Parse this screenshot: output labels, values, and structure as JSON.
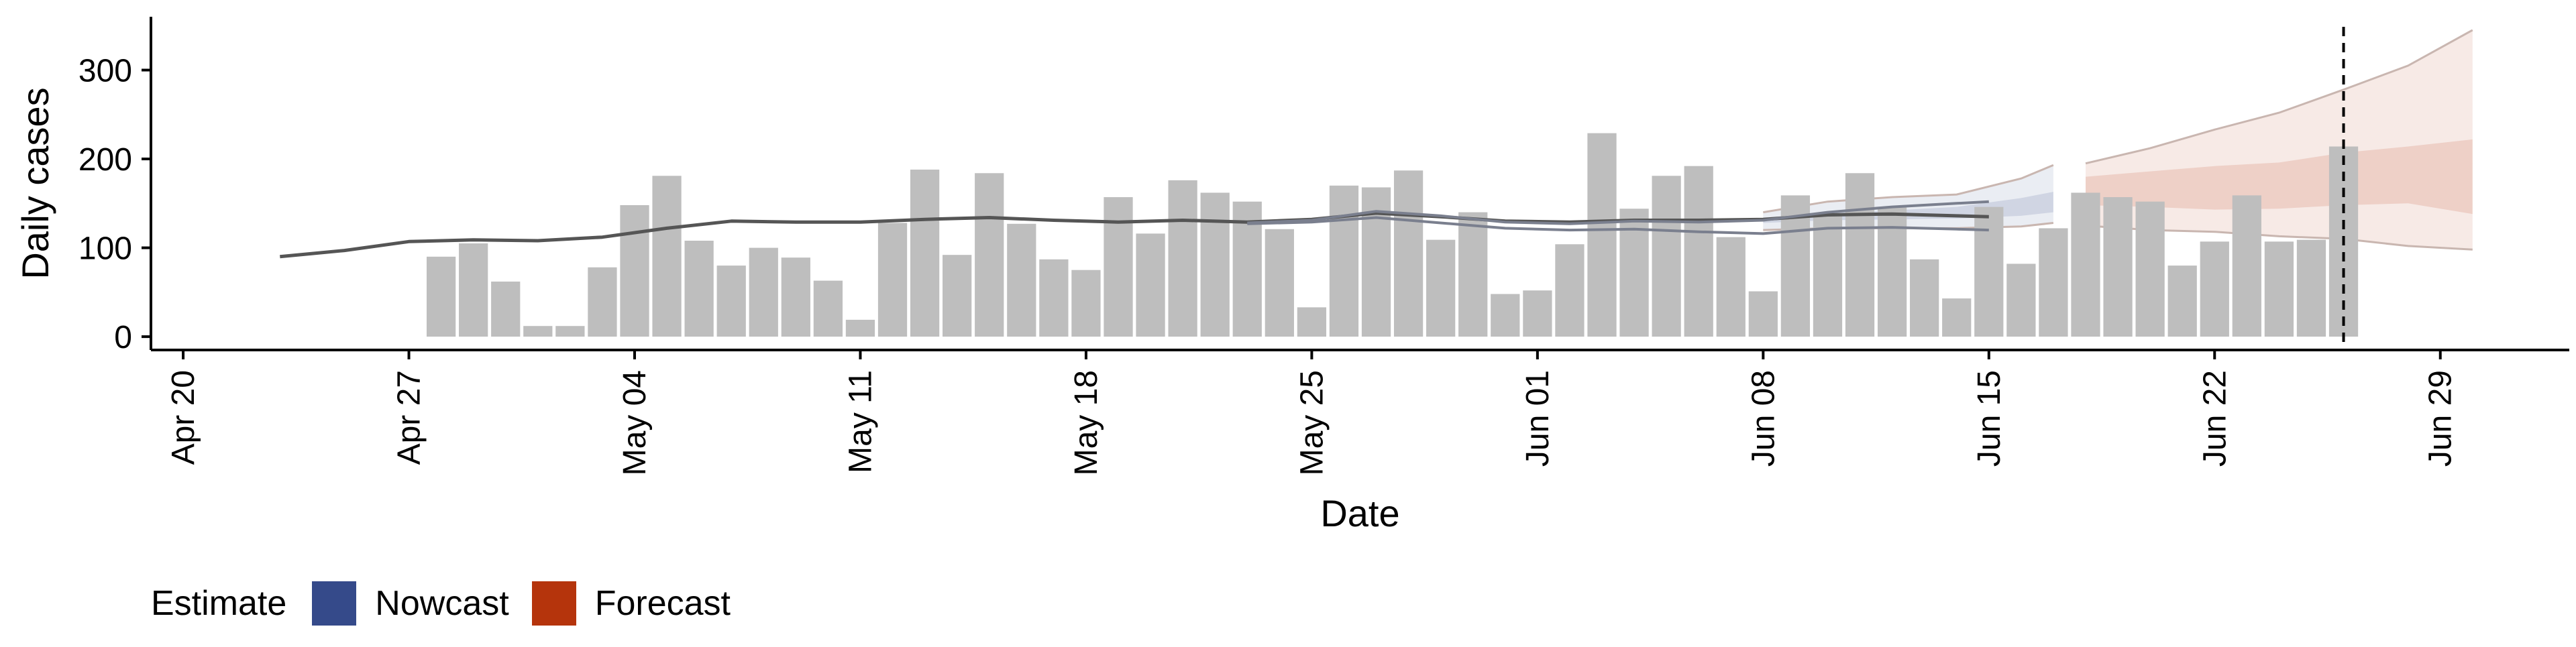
{
  "chart_data": {
    "type": "bar",
    "title": "",
    "xlabel": "Date",
    "ylabel": "Daily cases",
    "ylim": [
      -15,
      360
    ],
    "xlim": [
      "2020-04-19",
      "2020-07-03"
    ],
    "yticks": [
      0,
      100,
      200,
      300
    ],
    "ytick_labels": [
      "0",
      "100",
      "200",
      "300"
    ],
    "xticks": [
      "2020-04-20",
      "2020-04-27",
      "2020-05-04",
      "2020-05-11",
      "2020-05-18",
      "2020-05-25",
      "2020-06-01",
      "2020-06-08",
      "2020-06-15",
      "2020-06-22",
      "2020-06-29"
    ],
    "xtick_labels": [
      "Apr 20",
      "Apr 27",
      "May 04",
      "May 11",
      "May 18",
      "May 25",
      "Jun 01",
      "Jun 08",
      "Jun 15",
      "Jun 22",
      "Jun 29"
    ],
    "legend": {
      "title": "Estimate",
      "position": "bottom-left",
      "items": [
        {
          "label": "Nowcast",
          "color": "#354a8a"
        },
        {
          "label": "Forecast",
          "color": "#b5340c"
        }
      ]
    },
    "vline_date": "2020-06-26",
    "bars": {
      "color": "#bebebe",
      "dates": [
        "2020-04-28",
        "2020-04-29",
        "2020-04-30",
        "2020-05-01",
        "2020-05-02",
        "2020-05-03",
        "2020-05-04",
        "2020-05-05",
        "2020-05-06",
        "2020-05-07",
        "2020-05-08",
        "2020-05-09",
        "2020-05-10",
        "2020-05-11",
        "2020-05-12",
        "2020-05-13",
        "2020-05-14",
        "2020-05-15",
        "2020-05-16",
        "2020-05-17",
        "2020-05-18",
        "2020-05-19",
        "2020-05-20",
        "2020-05-21",
        "2020-05-22",
        "2020-05-23",
        "2020-05-24",
        "2020-05-25",
        "2020-05-26",
        "2020-05-27",
        "2020-05-28",
        "2020-05-29",
        "2020-05-30",
        "2020-05-31",
        "2020-06-01",
        "2020-06-02",
        "2020-06-03",
        "2020-06-04",
        "2020-06-05",
        "2020-06-06",
        "2020-06-07",
        "2020-06-08",
        "2020-06-09",
        "2020-06-10",
        "2020-06-11",
        "2020-06-12",
        "2020-06-13",
        "2020-06-14",
        "2020-06-15",
        "2020-06-16",
        "2020-06-17",
        "2020-06-18",
        "2020-06-19",
        "2020-06-20",
        "2020-06-21",
        "2020-06-22",
        "2020-06-23",
        "2020-06-24",
        "2020-06-25",
        "2020-06-26"
      ],
      "values": [
        90,
        105,
        62,
        12,
        12,
        78,
        148,
        181,
        108,
        80,
        100,
        89,
        63,
        19,
        128,
        188,
        92,
        184,
        127,
        87,
        75,
        157,
        116,
        176,
        162,
        152,
        121,
        33,
        170,
        168,
        187,
        109,
        140,
        48,
        52,
        104,
        229,
        144,
        181,
        192,
        112,
        51,
        159,
        137,
        184,
        146,
        87,
        43,
        146,
        82,
        122,
        162,
        157,
        152,
        80,
        107,
        159,
        107,
        109,
        214
      ]
    },
    "series": [
      {
        "kind": "line",
        "dates": [
          "2020-04-23",
          "2020-04-25",
          "2020-04-27",
          "2020-04-29",
          "2020-05-01",
          "2020-05-03",
          "2020-05-05",
          "2020-05-07",
          "2020-05-09",
          "2020-05-11",
          "2020-05-13",
          "2020-05-15",
          "2020-05-17",
          "2020-05-19",
          "2020-05-21",
          "2020-05-23",
          "2020-05-25",
          "2020-05-27",
          "2020-05-29",
          "2020-05-31",
          "2020-06-02",
          "2020-06-04",
          "2020-06-06",
          "2020-06-08",
          "2020-06-10",
          "2020-06-12",
          "2020-06-14",
          "2020-06-15"
        ],
        "values": [
          90,
          97,
          107,
          109,
          108,
          112,
          122,
          130,
          129,
          129,
          132,
          134,
          131,
          129,
          131,
          129,
          132,
          139,
          135,
          130,
          129,
          131,
          131,
          132,
          137,
          138,
          136,
          135
        ],
        "color": "#555555"
      },
      {
        "kind": "line",
        "dates": [
          "2020-05-23",
          "2020-05-25",
          "2020-05-27",
          "2020-05-29",
          "2020-05-31",
          "2020-06-02",
          "2020-06-04",
          "2020-06-06",
          "2020-06-08",
          "2020-06-10",
          "2020-06-12",
          "2020-06-14",
          "2020-06-15"
        ],
        "values": [
          128,
          131,
          141,
          136,
          129,
          127,
          130,
          129,
          131,
          140,
          146,
          150,
          152
        ],
        "color": "#7a7f8e"
      },
      {
        "kind": "line",
        "dates": [
          "2020-05-23",
          "2020-05-25",
          "2020-05-27",
          "2020-05-29",
          "2020-05-31",
          "2020-06-02",
          "2020-06-04",
          "2020-06-06",
          "2020-06-08",
          "2020-06-10",
          "2020-06-12",
          "2020-06-14",
          "2020-06-15"
        ],
        "values": [
          127,
          129,
          134,
          128,
          122,
          120,
          121,
          118,
          116,
          122,
          123,
          121,
          120
        ],
        "color": "#7a7f8e"
      },
      {
        "kind": "band",
        "name": "Nowcast",
        "dates": [
          "2020-06-08",
          "2020-06-10",
          "2020-06-12",
          "2020-06-14",
          "2020-06-16",
          "2020-06-17"
        ],
        "lower": [
          120,
          122,
          122,
          122,
          124,
          128
        ],
        "upper": [
          140,
          152,
          157,
          160,
          178,
          193
        ],
        "inner_lower": [
          128,
          131,
          132,
          133,
          136,
          140
        ],
        "inner_upper": [
          134,
          139,
          142,
          146,
          156,
          163
        ],
        "color": "#354a8a"
      },
      {
        "kind": "band",
        "name": "Forecast",
        "dates": [
          "2020-06-18",
          "2020-06-20",
          "2020-06-22",
          "2020-06-24",
          "2020-06-26",
          "2020-06-28",
          "2020-06-30"
        ],
        "lower": [
          125,
          120,
          118,
          113,
          110,
          102,
          98
        ],
        "upper": [
          195,
          212,
          233,
          252,
          278,
          305,
          345
        ],
        "inner_lower": [
          148,
          146,
          143,
          144,
          148,
          150,
          138
        ],
        "inner_upper": [
          180,
          186,
          192,
          196,
          207,
          214,
          222
        ],
        "color": "#b5340c"
      }
    ]
  }
}
